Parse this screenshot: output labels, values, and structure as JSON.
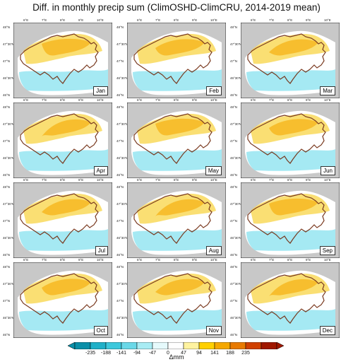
{
  "title": "Diff. in monthly precip sum (ClimOSHD-ClimCRU, 2014-2019 mean)",
  "months": [
    "Jan",
    "Feb",
    "Mar",
    "Apr",
    "May",
    "Jun",
    "Jul",
    "Aug",
    "Sep",
    "Oct",
    "Nov",
    "Dec"
  ],
  "lon_ticks": [
    "6°E",
    "7°E",
    "8°E",
    "9°E",
    "10°E"
  ],
  "lat_ticks": [
    "48°N",
    "47°30'N",
    "47°N",
    "46°30'N",
    "46°N"
  ],
  "colorbar": {
    "labels": [
      "-235",
      "-188",
      "-141",
      "-94",
      "-47",
      "0",
      "47",
      "94",
      "141",
      "188",
      "235"
    ],
    "title": "Δmm",
    "colors": [
      "#0a8fa8",
      "#1fb0c8",
      "#3cc8dc",
      "#6ad8e8",
      "#a8ecf4",
      "#e6fafc",
      "#ffffff",
      "#fff3a0",
      "#ffd000",
      "#f5a800",
      "#e87a00",
      "#d04000",
      "#a01800"
    ]
  },
  "colors": {
    "background_gray": "#c8c8c8",
    "border_brown": "#7a3a20",
    "positive": "#f5c400",
    "negative": "#7fe0ee"
  }
}
